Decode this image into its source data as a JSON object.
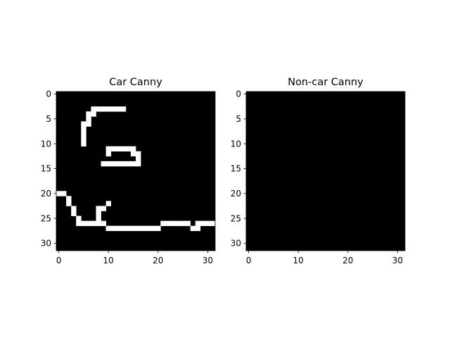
{
  "chart_data": [
    {
      "type": "heatmap",
      "title": "Car Canny",
      "colormap": "gray",
      "grid": false,
      "xlim": [
        -0.5,
        31.5
      ],
      "ylim": [
        31.5,
        -0.5
      ],
      "xticks": [
        0,
        10,
        20,
        30
      ],
      "yticks": [
        0,
        5,
        10,
        15,
        20,
        25,
        30
      ],
      "image_size": [
        32,
        32
      ],
      "edge_pixels": [
        [
          3,
          7
        ],
        [
          3,
          8
        ],
        [
          3,
          9
        ],
        [
          3,
          10
        ],
        [
          3,
          11
        ],
        [
          3,
          12
        ],
        [
          3,
          13
        ],
        [
          4,
          6
        ],
        [
          4,
          7
        ],
        [
          5,
          6
        ],
        [
          6,
          5
        ],
        [
          6,
          6
        ],
        [
          7,
          5
        ],
        [
          8,
          5
        ],
        [
          9,
          5
        ],
        [
          10,
          5
        ],
        [
          11,
          10
        ],
        [
          11,
          11
        ],
        [
          11,
          12
        ],
        [
          11,
          13
        ],
        [
          11,
          14
        ],
        [
          11,
          15
        ],
        [
          12,
          10
        ],
        [
          12,
          15
        ],
        [
          12,
          16
        ],
        [
          13,
          16
        ],
        [
          14,
          9
        ],
        [
          14,
          10
        ],
        [
          14,
          11
        ],
        [
          14,
          12
        ],
        [
          14,
          13
        ],
        [
          14,
          14
        ],
        [
          14,
          15
        ],
        [
          14,
          16
        ],
        [
          20,
          0
        ],
        [
          20,
          1
        ],
        [
          21,
          2
        ],
        [
          22,
          2
        ],
        [
          22,
          10
        ],
        [
          23,
          3
        ],
        [
          23,
          8
        ],
        [
          23,
          9
        ],
        [
          24,
          3
        ],
        [
          24,
          8
        ],
        [
          25,
          4
        ],
        [
          25,
          8
        ],
        [
          26,
          4
        ],
        [
          26,
          5
        ],
        [
          26,
          6
        ],
        [
          26,
          7
        ],
        [
          26,
          8
        ],
        [
          26,
          9
        ],
        [
          26,
          21
        ],
        [
          26,
          22
        ],
        [
          26,
          23
        ],
        [
          26,
          24
        ],
        [
          26,
          25
        ],
        [
          26,
          26
        ],
        [
          26,
          28
        ],
        [
          26,
          29
        ],
        [
          26,
          30
        ],
        [
          26,
          31
        ],
        [
          27,
          10
        ],
        [
          27,
          11
        ],
        [
          27,
          12
        ],
        [
          27,
          13
        ],
        [
          27,
          14
        ],
        [
          27,
          15
        ],
        [
          27,
          16
        ],
        [
          27,
          17
        ],
        [
          27,
          18
        ],
        [
          27,
          19
        ],
        [
          27,
          20
        ],
        [
          27,
          27
        ],
        [
          27,
          28
        ]
      ]
    },
    {
      "type": "heatmap",
      "title": "Non-car Canny",
      "colormap": "gray",
      "grid": false,
      "xlim": [
        -0.5,
        31.5
      ],
      "ylim": [
        31.5,
        -0.5
      ],
      "xticks": [
        0,
        10,
        20,
        30
      ],
      "yticks": [
        0,
        5,
        10,
        15,
        20,
        25,
        30
      ],
      "image_size": [
        32,
        32
      ],
      "edge_pixels": []
    }
  ]
}
